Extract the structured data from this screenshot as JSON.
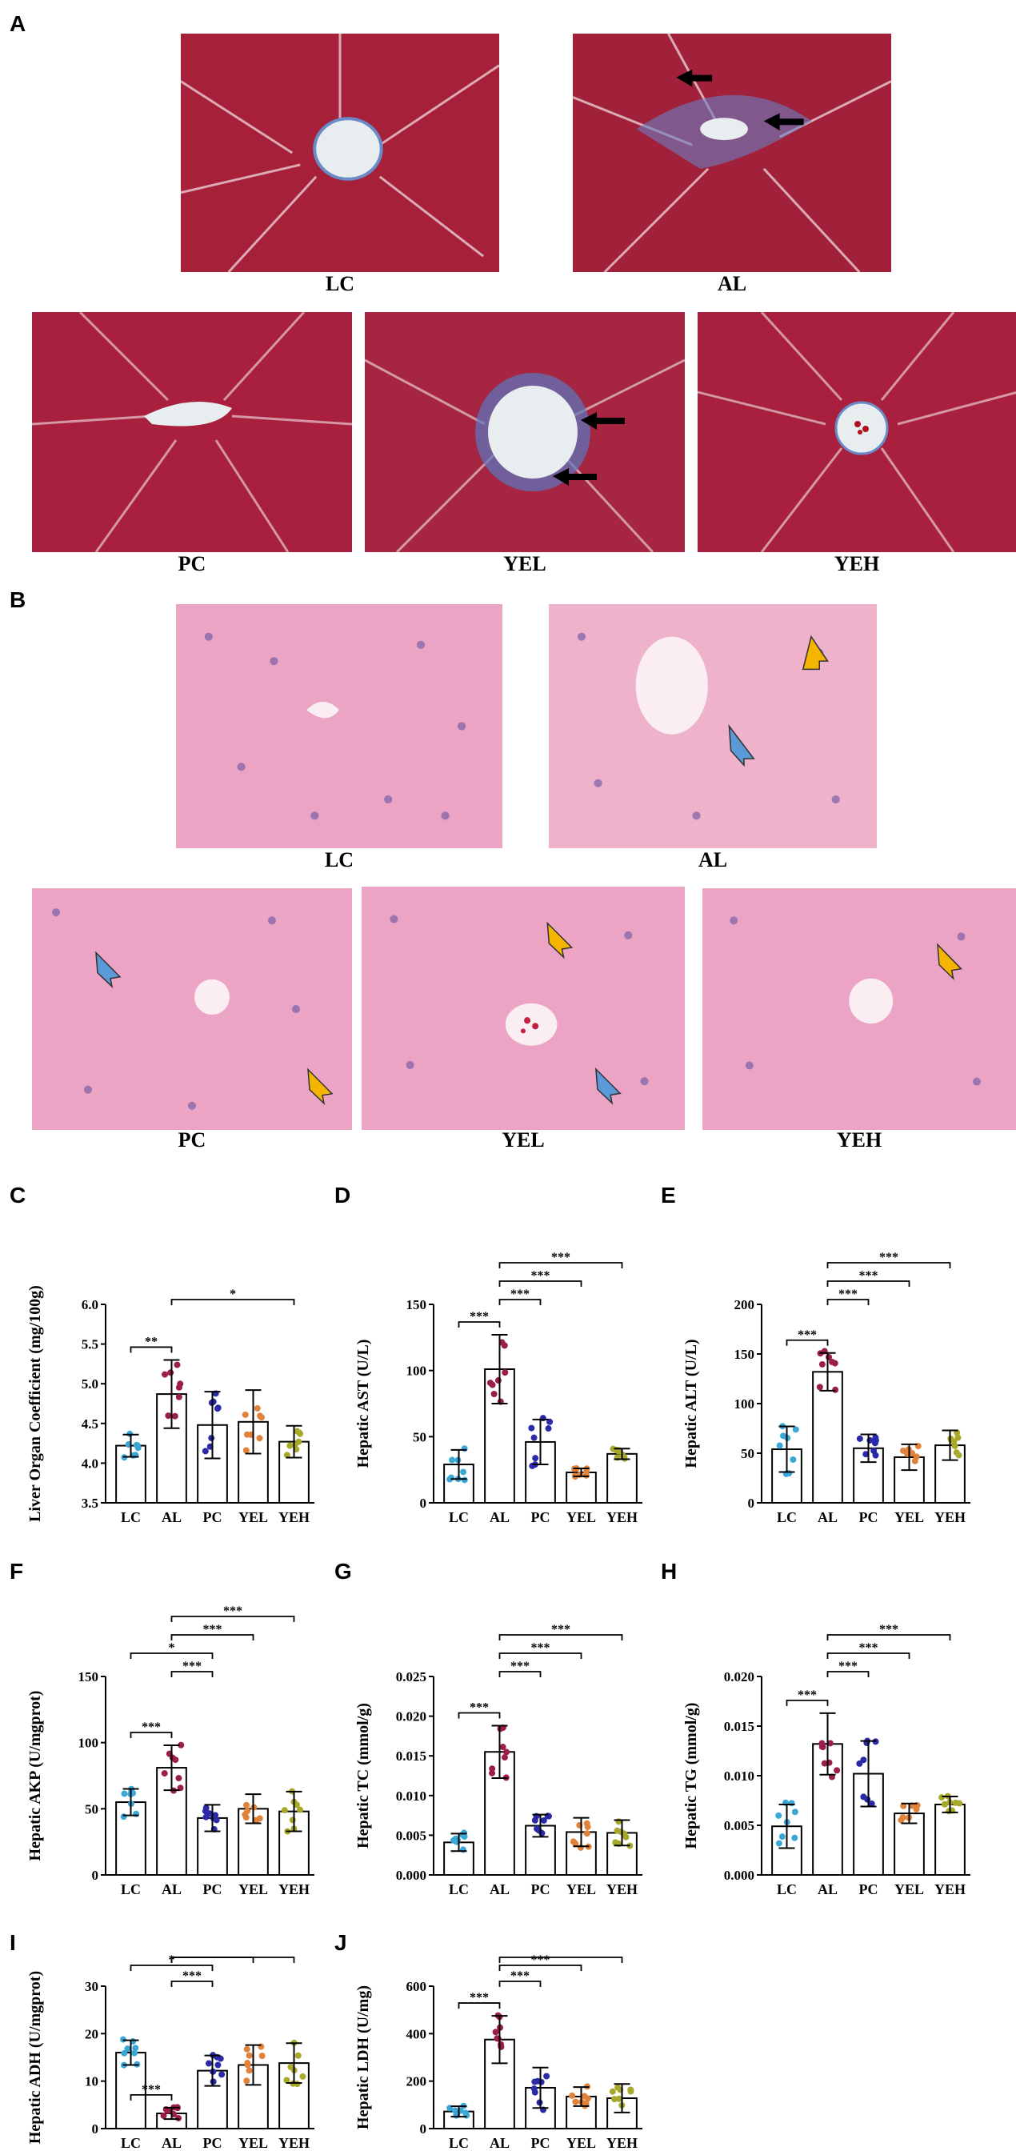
{
  "panel_labels": {
    "a": "A",
    "b": "B",
    "c": "C",
    "d": "D",
    "e": "E",
    "f": "F",
    "g": "G",
    "h": "H",
    "i": "I",
    "j": "J"
  },
  "images_a": [
    "LC",
    "AL",
    "PC",
    "YEL",
    "YEH"
  ],
  "images_b": [
    "LC",
    "AL",
    "PC",
    "YEL",
    "YEH"
  ],
  "colors": {
    "LC": "#3aa8d6",
    "AL": "#9b1d4c",
    "PC": "#2a2aa8",
    "YEL": "#e0823a",
    "YEH": "#a8a82a",
    "masson_bg": "#a7203a",
    "he_bg": "#eba4c4"
  },
  "chart_data": [
    {
      "id": "C",
      "type": "bar",
      "categories": [
        "LC",
        "AL",
        "PC",
        "YEL",
        "YEH"
      ],
      "values": [
        4.22,
        4.87,
        4.48,
        4.52,
        4.27
      ],
      "errors": [
        0.14,
        0.43,
        0.42,
        0.4,
        0.2
      ],
      "ylabel": "Liver Organ Coefficient (mg/100g)",
      "ylim": [
        3.5,
        6.0
      ],
      "ticks": [
        "3.5",
        "4.0",
        "4.5",
        "5.0",
        "5.5",
        "6.0"
      ],
      "sig": [
        {
          "from": 0,
          "to": 1,
          "label": "**"
        },
        {
          "from": 1,
          "to": 4,
          "label": "*"
        }
      ]
    },
    {
      "id": "D",
      "type": "bar",
      "categories": [
        "LC",
        "AL",
        "PC",
        "YEL",
        "YEH"
      ],
      "values": [
        29,
        101,
        46,
        23,
        37
      ],
      "errors": [
        11,
        26,
        17,
        3,
        4
      ],
      "ylabel": "Hepatic AST (U/L)",
      "ylim": [
        0,
        150
      ],
      "ticks": [
        "0",
        "50",
        "100",
        "150"
      ],
      "sig": [
        {
          "from": 0,
          "to": 1,
          "label": "***"
        },
        {
          "from": 1,
          "to": 2,
          "label": "***"
        },
        {
          "from": 1,
          "to": 3,
          "label": "***"
        },
        {
          "from": 1,
          "to": 4,
          "label": "***"
        }
      ]
    },
    {
      "id": "E",
      "type": "bar",
      "categories": [
        "LC",
        "AL",
        "PC",
        "YEL",
        "YEH"
      ],
      "values": [
        54,
        132,
        55,
        46,
        58
      ],
      "errors": [
        23,
        19,
        14,
        13,
        15
      ],
      "ylabel": "Hepatic ALT (U/L)",
      "ylim": [
        0,
        200
      ],
      "ticks": [
        "0",
        "50",
        "100",
        "150",
        "200"
      ],
      "sig": [
        {
          "from": 0,
          "to": 1,
          "label": "***"
        },
        {
          "from": 1,
          "to": 2,
          "label": "***"
        },
        {
          "from": 1,
          "to": 3,
          "label": "***"
        },
        {
          "from": 1,
          "to": 4,
          "label": "***"
        }
      ]
    },
    {
      "id": "F",
      "type": "bar",
      "categories": [
        "LC",
        "AL",
        "PC",
        "YEL",
        "YEH"
      ],
      "values": [
        55,
        81,
        43,
        50,
        48
      ],
      "errors": [
        10,
        17,
        10,
        11,
        15
      ],
      "ylabel": "Hepatic AKP (U/mgprot)",
      "ylim": [
        0,
        150
      ],
      "ticks": [
        "0",
        "50",
        "100",
        "150"
      ],
      "sig": [
        {
          "from": 0,
          "to": 1,
          "label": "***"
        },
        {
          "from": 1,
          "to": 2,
          "label": "***"
        },
        {
          "from": 0,
          "to": 2,
          "label": "*"
        },
        {
          "from": 1,
          "to": 3,
          "label": "***"
        },
        {
          "from": 1,
          "to": 4,
          "label": "***"
        }
      ]
    },
    {
      "id": "G",
      "type": "bar",
      "categories": [
        "LC",
        "AL",
        "PC",
        "YEL",
        "YEH"
      ],
      "values": [
        0.0041,
        0.0155,
        0.0062,
        0.0054,
        0.0053
      ],
      "errors": [
        0.0011,
        0.0033,
        0.0014,
        0.0018,
        0.0016
      ],
      "ylabel": "Hepatic TC (mmol/g)",
      "ylim": [
        0,
        0.025
      ],
      "ticks": [
        "0.000",
        "0.005",
        "0.010",
        "0.015",
        "0.020",
        "0.025"
      ],
      "sig": [
        {
          "from": 0,
          "to": 1,
          "label": "***"
        },
        {
          "from": 1,
          "to": 2,
          "label": "***"
        },
        {
          "from": 1,
          "to": 3,
          "label": "***"
        },
        {
          "from": 1,
          "to": 4,
          "label": "***"
        }
      ]
    },
    {
      "id": "H",
      "type": "bar",
      "categories": [
        "LC",
        "AL",
        "PC",
        "YEL",
        "YEH"
      ],
      "values": [
        0.0049,
        0.0132,
        0.0102,
        0.0062,
        0.0071
      ],
      "errors": [
        0.0022,
        0.0031,
        0.0033,
        0.001,
        0.0008
      ],
      "ylabel": "Hepatic TG (mmol/g)",
      "ylim": [
        0,
        0.02
      ],
      "ticks": [
        "0.000",
        "0.005",
        "0.010",
        "0.015",
        "0.020"
      ],
      "sig": [
        {
          "from": 0,
          "to": 1,
          "label": "***"
        },
        {
          "from": 1,
          "to": 2,
          "label": "***"
        },
        {
          "from": 1,
          "to": 3,
          "label": "***"
        },
        {
          "from": 1,
          "to": 4,
          "label": "***"
        }
      ]
    },
    {
      "id": "I",
      "type": "bar",
      "categories": [
        "LC",
        "AL",
        "PC",
        "YEL",
        "YEH"
      ],
      "values": [
        16,
        3.2,
        12.2,
        13.4,
        13.8
      ],
      "errors": [
        2.6,
        1.2,
        3.2,
        4.2,
        4.2
      ],
      "ylabel": "Hepatic ADH (U/mgprot)",
      "ylim": [
        0,
        30
      ],
      "ticks": [
        "0",
        "10",
        "20",
        "30"
      ],
      "sig": [
        {
          "from": 0,
          "to": 1,
          "label": "***"
        },
        {
          "from": 1,
          "to": 2,
          "label": "***"
        },
        {
          "from": 0,
          "to": 2,
          "label": "*"
        },
        {
          "from": 1,
          "to": 3,
          "label": "***"
        },
        {
          "from": 1,
          "to": 4,
          "label": "***"
        }
      ]
    },
    {
      "id": "J",
      "type": "bar",
      "categories": [
        "LC",
        "AL",
        "PC",
        "YEL",
        "YEH"
      ],
      "values": [
        72,
        375,
        172,
        135,
        128
      ],
      "errors": [
        22,
        100,
        85,
        40,
        60
      ],
      "ylabel": "Hepatic LDH (U/mg)",
      "ylim": [
        0,
        600
      ],
      "ticks": [
        "0",
        "200",
        "400",
        "600"
      ],
      "sig": [
        {
          "from": 0,
          "to": 1,
          "label": "***"
        },
        {
          "from": 1,
          "to": 2,
          "label": "***"
        },
        {
          "from": 1,
          "to": 3,
          "label": "***"
        },
        {
          "from": 1,
          "to": 4,
          "label": "***"
        }
      ]
    }
  ]
}
